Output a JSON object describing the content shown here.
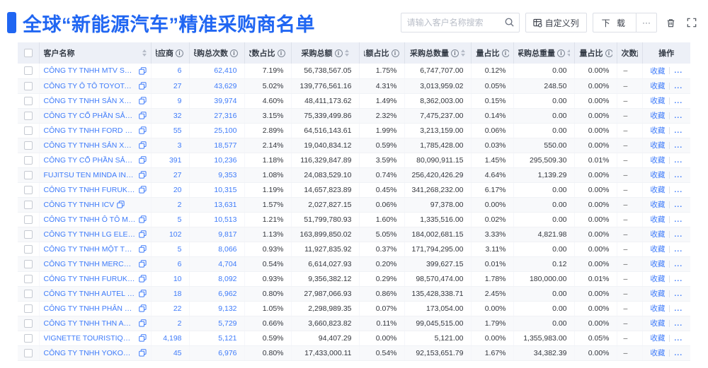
{
  "header": {
    "title": "全球“新能源汽车”精准采购商名单",
    "accent_color": "#2066f2"
  },
  "toolbar": {
    "search_placeholder": "请输入客户名称搜索",
    "customize_columns_label": "自定义列",
    "download_label": "下 载",
    "more_label": "···"
  },
  "table": {
    "columns": [
      {
        "key": "cb",
        "label": "",
        "type": "checkbox"
      },
      {
        "key": "name",
        "label": "客户名称",
        "sort": true,
        "style": "left"
      },
      {
        "key": "supplier",
        "label": "供应商",
        "info": true,
        "sort": true
      },
      {
        "key": "times",
        "label": "采购总次数",
        "info": true,
        "sort": true
      },
      {
        "key": "times_pct",
        "label": "次数占比",
        "info": true,
        "sort": true
      },
      {
        "key": "amount",
        "label": "采购总额",
        "info": true,
        "sort": true
      },
      {
        "key": "amount_pct",
        "label": "总额占比",
        "info": true,
        "sort": true
      },
      {
        "key": "qty",
        "label": "采购总数量",
        "info": true,
        "sort": true
      },
      {
        "key": "qty_pct",
        "label": "数量占比",
        "info": true,
        "sort": true
      },
      {
        "key": "weight",
        "label": "采购总重量",
        "info": true,
        "sort": true
      },
      {
        "key": "weight_pct",
        "label": "重量占比",
        "info": true,
        "sort": true
      },
      {
        "key": "trend",
        "label": "次数趋势",
        "style": "plain"
      },
      {
        "key": "op",
        "label": "操作"
      }
    ],
    "info_icon_glyph": "i",
    "op": {
      "favorite": "收藏",
      "more": "..."
    },
    "rows": [
      {
        "name": "CÔNG TY TNHH MTV SẢN XUẤ...",
        "supplier": "6",
        "times": "62,410",
        "times_pct": "7.19%",
        "amount": "56,738,567.05",
        "amount_pct": "1.75%",
        "qty": "6,747,707.00",
        "qty_pct": "0.12%",
        "weight": "0.00",
        "weight_pct": "0.00%",
        "trend": "–"
      },
      {
        "name": "CÔNG TY Ô TÔ TOYOTA VIỆT ...",
        "supplier": "27",
        "times": "43,629",
        "times_pct": "5.02%",
        "amount": "139,776,561.16",
        "amount_pct": "4.31%",
        "qty": "3,013,959.02",
        "qty_pct": "0.05%",
        "weight": "248.50",
        "weight_pct": "0.00%",
        "trend": "–"
      },
      {
        "name": "CÔNG TY TNHH SẢN XUẤT VÀ ...",
        "supplier": "9",
        "times": "39,974",
        "times_pct": "4.60%",
        "amount": "48,411,173.62",
        "amount_pct": "1.49%",
        "qty": "8,362,003.00",
        "qty_pct": "0.15%",
        "weight": "0.00",
        "weight_pct": "0.00%",
        "trend": "–"
      },
      {
        "name": "CÔNG TY CỔ PHẦN SẢN XUẤT...",
        "supplier": "32",
        "times": "27,316",
        "times_pct": "3.15%",
        "amount": "75,339,499.86",
        "amount_pct": "2.32%",
        "qty": "7,475,237.00",
        "qty_pct": "0.14%",
        "weight": "0.00",
        "weight_pct": "0.00%",
        "trend": "–"
      },
      {
        "name": "CÔNG TY TNHH FORD VIỆT NAM",
        "supplier": "55",
        "times": "25,100",
        "times_pct": "2.89%",
        "amount": "64,516,143.61",
        "amount_pct": "1.99%",
        "qty": "3,213,159.00",
        "qty_pct": "0.06%",
        "weight": "0.00",
        "weight_pct": "0.00%",
        "trend": "–"
      },
      {
        "name": "CÔNG TY TNHH SẢN XUẤT VÀ ...",
        "supplier": "3",
        "times": "18,577",
        "times_pct": "2.14%",
        "amount": "19,040,834.12",
        "amount_pct": "0.59%",
        "qty": "1,785,428.00",
        "qty_pct": "0.03%",
        "weight": "550.00",
        "weight_pct": "0.00%",
        "trend": "–"
      },
      {
        "name": "CÔNG TY CỔ PHẦN SẢN XUẤT...",
        "supplier": "391",
        "times": "10,236",
        "times_pct": "1.18%",
        "amount": "116,329,847.89",
        "amount_pct": "3.59%",
        "qty": "80,090,911.15",
        "qty_pct": "1.45%",
        "weight": "295,509.30",
        "weight_pct": "0.01%",
        "trend": "–"
      },
      {
        "name": "FUJITSU TEN MINDA INDIA PVT...",
        "supplier": "27",
        "times": "9,353",
        "times_pct": "1.08%",
        "amount": "24,083,529.10",
        "amount_pct": "0.74%",
        "qty": "256,420,426.29",
        "qty_pct": "4.64%",
        "weight": "1,139.29",
        "weight_pct": "0.00%",
        "trend": "–"
      },
      {
        "name": "CÔNG TY TNHH FURUKAWA A...",
        "supplier": "20",
        "times": "10,315",
        "times_pct": "1.19%",
        "amount": "14,657,823.89",
        "amount_pct": "0.45%",
        "qty": "341,268,232.00",
        "qty_pct": "6.17%",
        "weight": "0.00",
        "weight_pct": "0.00%",
        "trend": "–"
      },
      {
        "name": "CÔNG TY TNHH ICV",
        "supplier": "2",
        "times": "13,631",
        "times_pct": "1.57%",
        "amount": "2,027,827.15",
        "amount_pct": "0.06%",
        "qty": "97,378.00",
        "qty_pct": "0.00%",
        "weight": "0.00",
        "weight_pct": "0.00%",
        "trend": "–"
      },
      {
        "name": "CÔNG TY TNHH Ô TÔ MITSUBI...",
        "supplier": "5",
        "times": "10,513",
        "times_pct": "1.21%",
        "amount": "51,799,780.93",
        "amount_pct": "1.60%",
        "qty": "1,335,516.00",
        "qty_pct": "0.02%",
        "weight": "0.00",
        "weight_pct": "0.00%",
        "trend": "–"
      },
      {
        "name": "CÔNG TY TNHH LG ELECTRON...",
        "supplier": "102",
        "times": "9,817",
        "times_pct": "1.13%",
        "amount": "163,899,850.02",
        "amount_pct": "5.05%",
        "qty": "184,002,681.15",
        "qty_pct": "3.33%",
        "weight": "4,821.98",
        "weight_pct": "0.00%",
        "trend": "–"
      },
      {
        "name": "CÔNG TY TNHH MỘT THÀNH V...",
        "supplier": "5",
        "times": "8,066",
        "times_pct": "0.93%",
        "amount": "11,927,835.92",
        "amount_pct": "0.37%",
        "qty": "171,794,295.00",
        "qty_pct": "3.11%",
        "weight": "0.00",
        "weight_pct": "0.00%",
        "trend": "–"
      },
      {
        "name": "CÔNG TY TNHH MERCEDES–B...",
        "supplier": "6",
        "times": "4,704",
        "times_pct": "0.54%",
        "amount": "6,614,027.93",
        "amount_pct": "0.20%",
        "qty": "399,627.15",
        "qty_pct": "0.01%",
        "weight": "0.12",
        "weight_pct": "0.00%",
        "trend": "–"
      },
      {
        "name": "CÔNG TY TNHH FURUKAWA A...",
        "supplier": "10",
        "times": "8,092",
        "times_pct": "0.93%",
        "amount": "9,356,382.12",
        "amount_pct": "0.29%",
        "qty": "98,570,474.00",
        "qty_pct": "1.78%",
        "weight": "180,000.00",
        "weight_pct": "0.01%",
        "trend": "–"
      },
      {
        "name": "CÔNG TY TNHH AUTEL VIỆT N...",
        "supplier": "18",
        "times": "6,962",
        "times_pct": "0.80%",
        "amount": "27,987,066.93",
        "amount_pct": "0.86%",
        "qty": "135,428,338.71",
        "qty_pct": "2.45%",
        "weight": "0.00",
        "weight_pct": "0.00%",
        "trend": "–"
      },
      {
        "name": "CÔNG TY TNHH PHÂN PHỐI T...",
        "supplier": "22",
        "times": "9,132",
        "times_pct": "1.05%",
        "amount": "2,298,989.35",
        "amount_pct": "0.07%",
        "qty": "173,054.00",
        "qty_pct": "0.00%",
        "weight": "0.00",
        "weight_pct": "0.00%",
        "trend": "–"
      },
      {
        "name": "CÔNG TY TNHH THN AUTOPAR...",
        "supplier": "2",
        "times": "5,729",
        "times_pct": "0.66%",
        "amount": "3,660,823.82",
        "amount_pct": "0.11%",
        "qty": "99,045,515.00",
        "qty_pct": "1.79%",
        "weight": "0.00",
        "weight_pct": "0.00%",
        "trend": "–"
      },
      {
        "name": "VIGNETTE TOURISTIQUE G UNI...",
        "supplier": "4,198",
        "times": "5,121",
        "times_pct": "0.59%",
        "amount": "94,407.29",
        "amount_pct": "0.00%",
        "qty": "5,121.00",
        "qty_pct": "0.00%",
        "weight": "1,355,983.00",
        "weight_pct": "0.05%",
        "trend": "–"
      },
      {
        "name": "CÔNG TY TNHH YOKOWO VIỆT...",
        "supplier": "45",
        "times": "6,976",
        "times_pct": "0.80%",
        "amount": "17,433,000.11",
        "amount_pct": "0.54%",
        "qty": "92,153,651.79",
        "qty_pct": "1.67%",
        "weight": "34,382.39",
        "weight_pct": "0.00%",
        "trend": "–"
      }
    ]
  }
}
